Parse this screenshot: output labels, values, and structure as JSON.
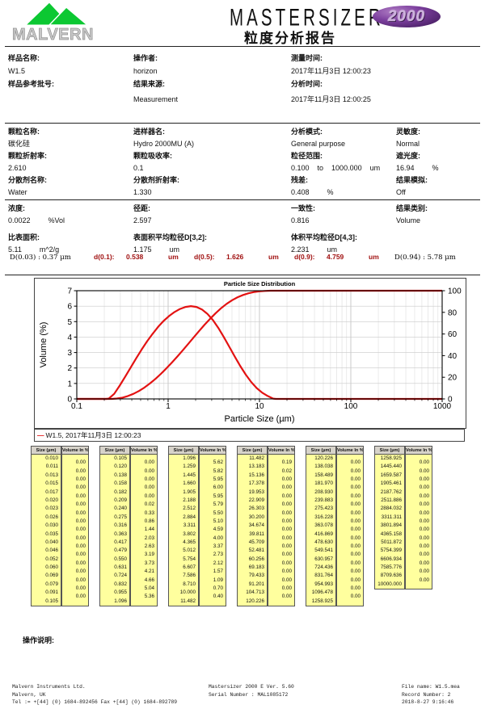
{
  "header": {
    "brand": "MALVERN",
    "product": "MASTERSIZER",
    "badge": "2000",
    "report_title": "粒度分析报告"
  },
  "sample": {
    "name_label": "样品名称:",
    "name": "W1.5",
    "ref_label": "样品参考批号:",
    "ref": "",
    "operator_label": "操作者:",
    "operator": "horizon",
    "source_label": "结果来源:",
    "source": "Measurement",
    "measured_label": "测量时间:",
    "measured": "2017年11月3日 12:00:23",
    "analysed_label": "分析时间:",
    "analysed": "2017年11月3日 12:00:25"
  },
  "setup": {
    "particle_label": "颗粒名称:",
    "particle": "碳化硅",
    "ri_label": "颗粒折射率:",
    "ri": "2.610",
    "dispersant_label": "分散剂名称:",
    "dispersant": "Water",
    "accessory_label": "进样器名:",
    "accessory": "Hydro 2000MU (A)",
    "absorption_label": "颗粒吸收率:",
    "absorption": "0.1",
    "dispersant_ri_label": "分散剂折射率:",
    "dispersant_ri": "1.330",
    "model_label": "分析模式:",
    "model": "General purpose",
    "range_label": "粒径范围:",
    "range_from": "0.100",
    "range_word": "to",
    "range_to": "1000.000",
    "range_unit": "um",
    "residual_label": "残差:",
    "residual": "0.408",
    "residual_unit": "%",
    "sensitivity_label": "灵敏度:",
    "sensitivity": "Normal",
    "obscuration_label": "遮光度:",
    "obscuration": "16.94",
    "obscuration_unit": "%",
    "emulation_label": "结果模拟:",
    "emulation": "Off"
  },
  "results": {
    "concentration_label": "浓度:",
    "concentration": "0.0022",
    "concentration_unit": "%Vol",
    "span_label": "径距:",
    "span": "2.597",
    "uniformity_label": "一致性:",
    "uniformity": "0.816",
    "type_label": "结果类别:",
    "type": "Volume",
    "ssa_label": "比表面积:",
    "ssa": "5.11",
    "ssa_unit": "m^2/g",
    "d32_label": "表面积平均粒径D[3,2]:",
    "d32": "1.175",
    "d32_unit": "um",
    "d43_label": "体积平均粒径D[4,3]:",
    "d43": "2.231",
    "d43_unit": "um"
  },
  "percentiles": {
    "d003": "D(0.03) : 0.37 μm",
    "d10_label": "d(0.1):",
    "d10": "0.538",
    "d10_unit": "um",
    "d50_label": "d(0.5):",
    "d50": "1.626",
    "d50_unit": "um",
    "d90_label": "d(0.9):",
    "d90": "4.759",
    "d90_unit": "um",
    "d094": "D(0.94) : 5.78 μm"
  },
  "chart_data": {
    "type": "line",
    "title": "Particle Size Distribution",
    "xlabel": "Particle Size (µm)",
    "ylabel_left": "Volume (%)",
    "x_scale": "log",
    "xlim": [
      0.1,
      1000
    ],
    "ylim_left": [
      0,
      7
    ],
    "ylim_right": [
      0,
      100
    ],
    "left_ticks": [
      0,
      1,
      2,
      3,
      4,
      5,
      6,
      7
    ],
    "right_ticks": [
      0,
      20,
      40,
      60,
      80,
      100
    ],
    "xticks": [
      0.1,
      1,
      10,
      100,
      1000
    ],
    "xtick_labels": [
      "0.1",
      "1",
      "10",
      "100",
      "1000"
    ],
    "grid": true,
    "line_color": "#e31212",
    "legend": "W1.5, 2017年11月3日 12:00:23",
    "series": [
      {
        "name": "volume-frequency",
        "axis": "left",
        "x": [
          0.1,
          0.209,
          0.224,
          0.257,
          0.295,
          0.339,
          0.389,
          0.447,
          0.513,
          0.589,
          0.676,
          0.776,
          0.891,
          1.023,
          1.175,
          1.349,
          1.549,
          1.778,
          2.042,
          2.344,
          2.692,
          3.09,
          3.548,
          4.074,
          4.677,
          5.37,
          6.166,
          7.079,
          8.128,
          9.333,
          10.715,
          12.303,
          14.125,
          15.136,
          1000
        ],
        "y": [
          0,
          0,
          0.02,
          0.33,
          0.86,
          1.44,
          2.03,
          2.63,
          3.19,
          3.73,
          4.21,
          4.66,
          5.04,
          5.36,
          5.62,
          5.82,
          5.95,
          6.0,
          5.95,
          5.79,
          5.5,
          5.1,
          4.59,
          4.0,
          3.37,
          2.73,
          2.12,
          1.57,
          1.09,
          0.7,
          0.4,
          0.19,
          0.02,
          0,
          0
        ]
      },
      {
        "name": "cumulative-undersize",
        "axis": "right",
        "x": [
          0.1,
          0.209,
          0.24,
          0.275,
          0.316,
          0.363,
          0.417,
          0.479,
          0.55,
          0.631,
          0.724,
          0.832,
          0.955,
          1.096,
          1.259,
          1.445,
          1.66,
          1.905,
          2.188,
          2.512,
          2.884,
          3.311,
          3.802,
          4.365,
          5.012,
          5.754,
          6.607,
          7.586,
          8.71,
          10.0,
          11.482,
          13.183,
          15.136,
          1000
        ],
        "y": [
          0,
          0,
          0.02,
          0.35,
          1.21,
          2.65,
          4.68,
          7.31,
          10.5,
          14.23,
          18.44,
          23.1,
          28.14,
          33.5,
          39.12,
          44.94,
          50.89,
          56.89,
          62.84,
          68.63,
          74.13,
          79.23,
          83.82,
          87.82,
          91.19,
          93.92,
          96.04,
          97.61,
          98.7,
          99.4,
          99.8,
          99.99,
          100,
          100
        ]
      }
    ]
  },
  "tables": {
    "header_size": "Size (µm)",
    "header_volume": "Volume In %",
    "groups": [
      {
        "sizes": [
          "0.010",
          "0.011",
          "0.013",
          "0.015",
          "0.017",
          "0.020",
          "0.023",
          "0.026",
          "0.030",
          "0.035",
          "0.040",
          "0.046",
          "0.052",
          "0.060",
          "0.069",
          "0.079",
          "0.091",
          "0.105"
        ],
        "volumes": [
          "0.00",
          "0.00",
          "0.00",
          "0.00",
          "0.00",
          "0.00",
          "0.00",
          "0.00",
          "0.00",
          "0.00",
          "0.00",
          "0.00",
          "0.00",
          "0.00",
          "0.00",
          "0.00",
          "0.00"
        ]
      },
      {
        "sizes": [
          "0.105",
          "0.120",
          "0.138",
          "0.158",
          "0.182",
          "0.209",
          "0.240",
          "0.275",
          "0.316",
          "0.363",
          "0.417",
          "0.479",
          "0.550",
          "0.631",
          "0.724",
          "0.832",
          "0.955",
          "1.096"
        ],
        "volumes": [
          "0.00",
          "0.00",
          "0.00",
          "0.00",
          "0.00",
          "0.02",
          "0.33",
          "0.86",
          "1.44",
          "2.03",
          "2.63",
          "3.19",
          "3.73",
          "4.21",
          "4.66",
          "5.04",
          "5.36"
        ]
      },
      {
        "sizes": [
          "1.096",
          "1.259",
          "1.445",
          "1.660",
          "1.905",
          "2.188",
          "2.512",
          "2.884",
          "3.311",
          "3.802",
          "4.365",
          "5.012",
          "5.754",
          "6.607",
          "7.586",
          "8.710",
          "10.000",
          "11.482"
        ],
        "volumes": [
          "5.62",
          "5.82",
          "5.95",
          "6.00",
          "5.95",
          "5.79",
          "5.50",
          "5.10",
          "4.59",
          "4.00",
          "3.37",
          "2.73",
          "2.12",
          "1.57",
          "1.09",
          "0.70",
          "0.40"
        ]
      },
      {
        "sizes": [
          "11.482",
          "13.183",
          "15.136",
          "17.378",
          "19.953",
          "22.909",
          "26.303",
          "30.200",
          "34.674",
          "39.811",
          "45.709",
          "52.481",
          "60.256",
          "69.183",
          "79.433",
          "91.201",
          "104.713",
          "120.226"
        ],
        "volumes": [
          "0.19",
          "0.02",
          "0.00",
          "0.00",
          "0.00",
          "0.00",
          "0.00",
          "0.00",
          "0.00",
          "0.00",
          "0.00",
          "0.00",
          "0.00",
          "0.00",
          "0.00",
          "0.00",
          "0.00"
        ]
      },
      {
        "sizes": [
          "120.226",
          "138.038",
          "158.489",
          "181.970",
          "208.930",
          "239.883",
          "275.423",
          "316.228",
          "363.078",
          "416.869",
          "478.630",
          "549.541",
          "630.957",
          "724.436",
          "831.764",
          "954.993",
          "1096.478",
          "1258.925"
        ],
        "volumes": [
          "0.00",
          "0.00",
          "0.00",
          "0.00",
          "0.00",
          "0.00",
          "0.00",
          "0.00",
          "0.00",
          "0.00",
          "0.00",
          "0.00",
          "0.00",
          "0.00",
          "0.00",
          "0.00",
          "0.00"
        ]
      },
      {
        "sizes": [
          "1258.925",
          "1445.440",
          "1659.587",
          "1905.461",
          "2187.762",
          "2511.886",
          "2884.032",
          "3311.311",
          "3801.894",
          "4365.158",
          "5011.872",
          "5754.399",
          "6606.934",
          "7585.776",
          "8709.636",
          "10000.000"
        ],
        "volumes": [
          "0.00",
          "0.00",
          "0.00",
          "0.00",
          "0.00",
          "0.00",
          "0.00",
          "0.00",
          "0.00",
          "0.00",
          "0.00",
          "0.00",
          "0.00",
          "0.00",
          "0.00"
        ]
      }
    ]
  },
  "notes": {
    "label": "操作说明:"
  },
  "footer": {
    "company_lines": [
      "Malvern Instruments Ltd.",
      "Malvern, UK",
      "Tel := +[44] (0) 1684-892456 Fax +[44] (0) 1684-892789"
    ],
    "center_lines": [
      "Mastersizer 2000 E Ver. 5.60",
      "Serial Number : MAL1085172"
    ],
    "right_lines": [
      "File name: W1.5.mea",
      "Record Number: 2",
      "2018-8-27 9:16:46"
    ]
  }
}
